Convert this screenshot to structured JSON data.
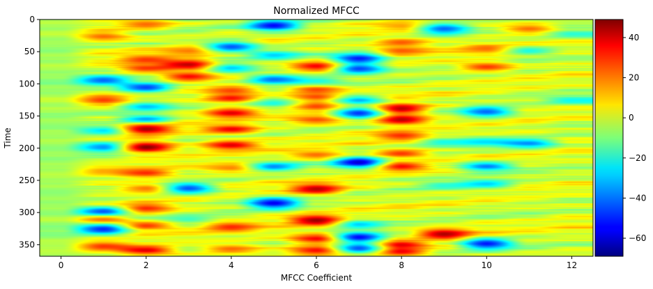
{
  "chart_data": {
    "type": "heatmap",
    "title": "Normalized MFCC",
    "xlabel": "MFCC Coefficient",
    "ylabel": "Time",
    "xlim": [
      -0.5,
      12.5
    ],
    "ylim": [
      368,
      0
    ],
    "x_ticks": [
      0,
      2,
      4,
      6,
      8,
      10,
      12
    ],
    "y_ticks": [
      0,
      50,
      100,
      150,
      200,
      250,
      300,
      350
    ],
    "colormap": "jet",
    "colorbar": {
      "vmin": -69,
      "vmax": 49,
      "ticks": [
        40,
        20,
        0,
        -20,
        -40,
        -60
      ]
    },
    "rows": 368,
    "cols": 13,
    "features": [
      {
        "col": 1,
        "row": 26,
        "value": 22
      },
      {
        "col": 1,
        "row": 94,
        "value": -42
      },
      {
        "col": 1,
        "row": 125,
        "value": 28
      },
      {
        "col": 1,
        "row": 172,
        "value": -32
      },
      {
        "col": 1,
        "row": 198,
        "value": -42
      },
      {
        "col": 1,
        "row": 235,
        "value": 14
      },
      {
        "col": 1,
        "row": 298,
        "value": -48
      },
      {
        "col": 1,
        "row": 312,
        "value": 26
      },
      {
        "col": 1,
        "row": 325,
        "value": -52
      },
      {
        "col": 1,
        "row": 352,
        "value": 28
      },
      {
        "col": 2,
        "row": 7,
        "value": 22
      },
      {
        "col": 2,
        "row": 62,
        "value": 28
      },
      {
        "col": 2,
        "row": 75,
        "value": 28
      },
      {
        "col": 2,
        "row": 105,
        "value": -46
      },
      {
        "col": 2,
        "row": 135,
        "value": -32
      },
      {
        "col": 2,
        "row": 155,
        "value": -38
      },
      {
        "col": 2,
        "row": 170,
        "value": 44
      },
      {
        "col": 2,
        "row": 198,
        "value": 48
      },
      {
        "col": 2,
        "row": 238,
        "value": 30
      },
      {
        "col": 2,
        "row": 262,
        "value": 24
      },
      {
        "col": 2,
        "row": 293,
        "value": 30
      },
      {
        "col": 2,
        "row": 320,
        "value": 28
      },
      {
        "col": 2,
        "row": 358,
        "value": 38
      },
      {
        "col": 3,
        "row": 70,
        "value": 44
      },
      {
        "col": 3,
        "row": 88,
        "value": 34
      },
      {
        "col": 3,
        "row": 262,
        "value": -44
      },
      {
        "col": 3,
        "row": 310,
        "value": -18
      },
      {
        "col": 3,
        "row": 48,
        "value": 22
      },
      {
        "col": 4,
        "row": 42,
        "value": -44
      },
      {
        "col": 4,
        "row": 75,
        "value": -30
      },
      {
        "col": 4,
        "row": 110,
        "value": 26
      },
      {
        "col": 4,
        "row": 122,
        "value": 34
      },
      {
        "col": 4,
        "row": 145,
        "value": 38
      },
      {
        "col": 4,
        "row": 170,
        "value": 36
      },
      {
        "col": 4,
        "row": 195,
        "value": 38
      },
      {
        "col": 4,
        "row": 230,
        "value": 22
      },
      {
        "col": 4,
        "row": 322,
        "value": 30
      },
      {
        "col": 4,
        "row": 356,
        "value": 22
      },
      {
        "col": 5,
        "row": 9,
        "value": -54
      },
      {
        "col": 5,
        "row": 93,
        "value": -42
      },
      {
        "col": 5,
        "row": 228,
        "value": -38
      },
      {
        "col": 5,
        "row": 285,
        "value": -56
      },
      {
        "col": 5,
        "row": 130,
        "value": -24
      },
      {
        "col": 5,
        "row": 55,
        "value": -30
      },
      {
        "col": 6,
        "row": 72,
        "value": 40
      },
      {
        "col": 6,
        "row": 108,
        "value": 28
      },
      {
        "col": 6,
        "row": 120,
        "value": 28
      },
      {
        "col": 6,
        "row": 135,
        "value": 28
      },
      {
        "col": 6,
        "row": 155,
        "value": 26
      },
      {
        "col": 6,
        "row": 210,
        "value": 22
      },
      {
        "col": 6,
        "row": 263,
        "value": 42
      },
      {
        "col": 6,
        "row": 312,
        "value": 48
      },
      {
        "col": 6,
        "row": 340,
        "value": 40
      },
      {
        "col": 6,
        "row": 358,
        "value": 38
      },
      {
        "col": 6,
        "row": 95,
        "value": -22
      },
      {
        "col": 7,
        "row": 60,
        "value": -52
      },
      {
        "col": 7,
        "row": 76,
        "value": -46
      },
      {
        "col": 7,
        "row": 125,
        "value": -34
      },
      {
        "col": 7,
        "row": 145,
        "value": -52
      },
      {
        "col": 7,
        "row": 222,
        "value": -62
      },
      {
        "col": 7,
        "row": 338,
        "value": -54
      },
      {
        "col": 7,
        "row": 355,
        "value": -50
      },
      {
        "col": 7,
        "row": 318,
        "value": -30
      },
      {
        "col": 8,
        "row": 35,
        "value": 24
      },
      {
        "col": 8,
        "row": 48,
        "value": 24
      },
      {
        "col": 8,
        "row": 138,
        "value": 42
      },
      {
        "col": 8,
        "row": 155,
        "value": 42
      },
      {
        "col": 8,
        "row": 180,
        "value": 30
      },
      {
        "col": 8,
        "row": 208,
        "value": 28
      },
      {
        "col": 8,
        "row": 228,
        "value": 34
      },
      {
        "col": 8,
        "row": 350,
        "value": 38
      },
      {
        "col": 8,
        "row": 360,
        "value": 36
      },
      {
        "col": 8,
        "row": 10,
        "value": 18
      },
      {
        "col": 9,
        "row": 14,
        "value": -42
      },
      {
        "col": 9,
        "row": 333,
        "value": 44
      },
      {
        "col": 9,
        "row": 190,
        "value": -22
      },
      {
        "col": 9,
        "row": 258,
        "value": -20
      },
      {
        "col": 10,
        "row": 45,
        "value": 24
      },
      {
        "col": 10,
        "row": 73,
        "value": 28
      },
      {
        "col": 10,
        "row": 143,
        "value": -42
      },
      {
        "col": 10,
        "row": 228,
        "value": -40
      },
      {
        "col": 10,
        "row": 255,
        "value": -30
      },
      {
        "col": 10,
        "row": 348,
        "value": -52
      },
      {
        "col": 10,
        "row": 190,
        "value": -28
      },
      {
        "col": 11,
        "row": 14,
        "value": 22
      },
      {
        "col": 11,
        "row": 192,
        "value": -38
      },
      {
        "col": 11,
        "row": 48,
        "value": -22
      },
      {
        "col": 12,
        "row": 22,
        "value": -20
      },
      {
        "col": 12,
        "row": 125,
        "value": -24
      }
    ]
  }
}
